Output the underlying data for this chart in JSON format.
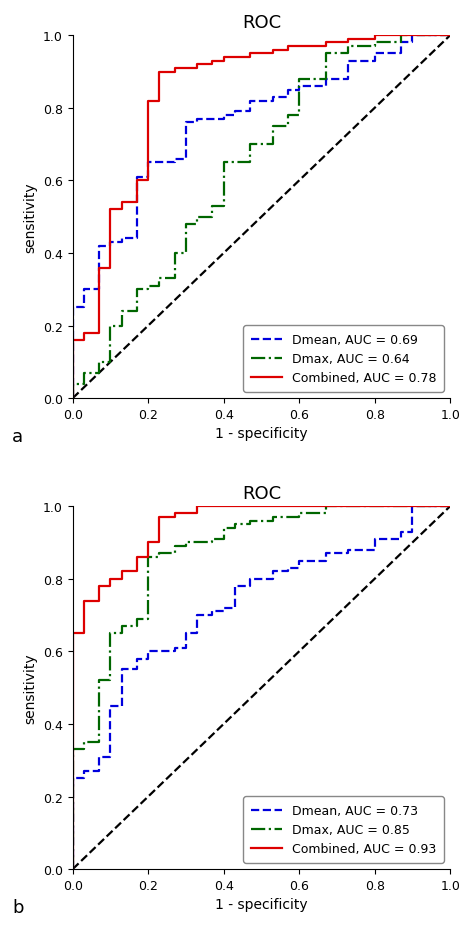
{
  "title": "ROC",
  "xlabel": "1 - specificity",
  "ylabel": "sensitivity",
  "panel_a": {
    "label_text": "a",
    "curves": [
      {
        "label": "Dmean, AUC = 0.69",
        "color": "#0000dd",
        "linestyle": "--",
        "x": [
          0.0,
          0.0,
          0.03,
          0.03,
          0.07,
          0.07,
          0.1,
          0.1,
          0.13,
          0.13,
          0.17,
          0.17,
          0.2,
          0.2,
          0.27,
          0.27,
          0.3,
          0.3,
          0.33,
          0.33,
          0.4,
          0.4,
          0.43,
          0.43,
          0.47,
          0.47,
          0.53,
          0.53,
          0.57,
          0.57,
          0.6,
          0.6,
          0.67,
          0.67,
          0.73,
          0.73,
          0.8,
          0.8,
          0.87,
          0.87,
          0.9,
          0.9,
          1.0
        ],
        "y": [
          0.0,
          0.25,
          0.25,
          0.3,
          0.3,
          0.42,
          0.42,
          0.43,
          0.43,
          0.44,
          0.44,
          0.61,
          0.61,
          0.65,
          0.65,
          0.66,
          0.66,
          0.76,
          0.76,
          0.77,
          0.77,
          0.78,
          0.78,
          0.79,
          0.79,
          0.82,
          0.82,
          0.83,
          0.83,
          0.85,
          0.85,
          0.86,
          0.86,
          0.88,
          0.88,
          0.93,
          0.93,
          0.95,
          0.95,
          0.98,
          0.98,
          1.0,
          1.0
        ]
      },
      {
        "label": "Dmax, AUC = 0.64",
        "color": "#006600",
        "linestyle": "-.",
        "x": [
          0.0,
          0.0,
          0.03,
          0.03,
          0.07,
          0.07,
          0.1,
          0.1,
          0.13,
          0.13,
          0.17,
          0.17,
          0.2,
          0.2,
          0.23,
          0.23,
          0.27,
          0.27,
          0.3,
          0.3,
          0.33,
          0.33,
          0.37,
          0.37,
          0.4,
          0.4,
          0.47,
          0.47,
          0.53,
          0.53,
          0.57,
          0.57,
          0.6,
          0.6,
          0.67,
          0.67,
          0.73,
          0.73,
          0.8,
          0.8,
          0.87,
          0.87,
          1.0
        ],
        "y": [
          0.0,
          0.04,
          0.04,
          0.07,
          0.07,
          0.1,
          0.1,
          0.2,
          0.2,
          0.24,
          0.24,
          0.3,
          0.3,
          0.31,
          0.31,
          0.33,
          0.33,
          0.4,
          0.4,
          0.48,
          0.48,
          0.5,
          0.5,
          0.53,
          0.53,
          0.65,
          0.65,
          0.7,
          0.7,
          0.75,
          0.75,
          0.78,
          0.78,
          0.88,
          0.88,
          0.95,
          0.95,
          0.97,
          0.97,
          0.98,
          0.98,
          1.0,
          1.0
        ]
      },
      {
        "label": "Combined, AUC = 0.78",
        "color": "#dd0000",
        "linestyle": "-",
        "x": [
          0.0,
          0.0,
          0.03,
          0.03,
          0.07,
          0.07,
          0.1,
          0.1,
          0.13,
          0.13,
          0.17,
          0.17,
          0.2,
          0.2,
          0.23,
          0.23,
          0.27,
          0.27,
          0.33,
          0.33,
          0.37,
          0.37,
          0.4,
          0.4,
          0.47,
          0.47,
          0.53,
          0.53,
          0.57,
          0.57,
          0.67,
          0.67,
          0.73,
          0.73,
          0.8,
          0.8,
          0.87,
          0.87,
          1.0
        ],
        "y": [
          0.0,
          0.16,
          0.16,
          0.18,
          0.18,
          0.36,
          0.36,
          0.52,
          0.52,
          0.54,
          0.54,
          0.6,
          0.6,
          0.82,
          0.82,
          0.9,
          0.9,
          0.91,
          0.91,
          0.92,
          0.92,
          0.93,
          0.93,
          0.94,
          0.94,
          0.95,
          0.95,
          0.96,
          0.96,
          0.97,
          0.97,
          0.98,
          0.98,
          0.99,
          0.99,
          1.0,
          1.0,
          1.0,
          1.0
        ]
      }
    ]
  },
  "panel_b": {
    "label_text": "b",
    "curves": [
      {
        "label": "Dmean, AUC = 0.73",
        "color": "#0000dd",
        "linestyle": "--",
        "x": [
          0.0,
          0.0,
          0.03,
          0.03,
          0.07,
          0.07,
          0.1,
          0.1,
          0.13,
          0.13,
          0.17,
          0.17,
          0.2,
          0.2,
          0.27,
          0.27,
          0.3,
          0.3,
          0.33,
          0.33,
          0.37,
          0.37,
          0.4,
          0.4,
          0.43,
          0.43,
          0.47,
          0.47,
          0.53,
          0.53,
          0.57,
          0.57,
          0.6,
          0.6,
          0.67,
          0.67,
          0.73,
          0.73,
          0.8,
          0.8,
          0.87,
          0.87,
          0.9,
          0.9,
          1.0
        ],
        "y": [
          0.0,
          0.25,
          0.25,
          0.27,
          0.27,
          0.31,
          0.31,
          0.45,
          0.45,
          0.55,
          0.55,
          0.58,
          0.58,
          0.6,
          0.6,
          0.61,
          0.61,
          0.65,
          0.65,
          0.7,
          0.7,
          0.71,
          0.71,
          0.72,
          0.72,
          0.78,
          0.78,
          0.8,
          0.8,
          0.82,
          0.82,
          0.83,
          0.83,
          0.85,
          0.85,
          0.87,
          0.87,
          0.88,
          0.88,
          0.91,
          0.91,
          0.93,
          0.93,
          1.0,
          1.0
        ]
      },
      {
        "label": "Dmax, AUC = 0.85",
        "color": "#006600",
        "linestyle": "-.",
        "x": [
          0.0,
          0.0,
          0.03,
          0.03,
          0.07,
          0.07,
          0.1,
          0.1,
          0.13,
          0.13,
          0.17,
          0.17,
          0.2,
          0.2,
          0.23,
          0.23,
          0.27,
          0.27,
          0.3,
          0.3,
          0.37,
          0.37,
          0.4,
          0.4,
          0.43,
          0.43,
          0.47,
          0.47,
          0.53,
          0.53,
          0.6,
          0.6,
          0.67,
          0.67,
          1.0
        ],
        "y": [
          0.0,
          0.33,
          0.33,
          0.35,
          0.35,
          0.52,
          0.52,
          0.65,
          0.65,
          0.67,
          0.67,
          0.69,
          0.69,
          0.86,
          0.86,
          0.87,
          0.87,
          0.89,
          0.89,
          0.9,
          0.9,
          0.91,
          0.91,
          0.94,
          0.94,
          0.95,
          0.95,
          0.96,
          0.96,
          0.97,
          0.97,
          0.98,
          0.98,
          1.0,
          1.0
        ]
      },
      {
        "label": "Combined, AUC = 0.93",
        "color": "#dd0000",
        "linestyle": "-",
        "x": [
          0.0,
          0.0,
          0.03,
          0.03,
          0.07,
          0.07,
          0.1,
          0.1,
          0.13,
          0.13,
          0.17,
          0.17,
          0.2,
          0.2,
          0.23,
          0.23,
          0.27,
          0.27,
          0.33,
          0.33,
          1.0
        ],
        "y": [
          0.0,
          0.65,
          0.65,
          0.74,
          0.74,
          0.78,
          0.78,
          0.8,
          0.8,
          0.82,
          0.82,
          0.86,
          0.86,
          0.9,
          0.9,
          0.97,
          0.97,
          0.98,
          0.98,
          1.0,
          1.0
        ]
      }
    ]
  },
  "linewidth": 1.6,
  "diag_color": "black",
  "diag_linestyle": "--",
  "xlim": [
    0.0,
    1.0
  ],
  "ylim": [
    0.0,
    1.0
  ],
  "xticks": [
    0.0,
    0.2,
    0.4,
    0.6,
    0.8,
    1.0
  ],
  "yticks": [
    0.0,
    0.2,
    0.4,
    0.6,
    0.8,
    1.0
  ],
  "bg_color": "white",
  "title_fontsize": 13,
  "label_fontsize": 10,
  "tick_fontsize": 9,
  "legend_fontsize": 9
}
